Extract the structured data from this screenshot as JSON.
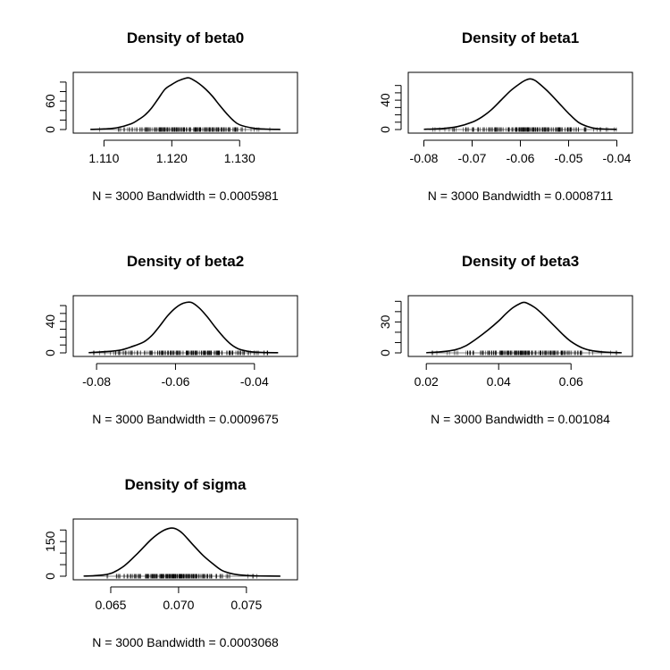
{
  "chart_data": [
    {
      "type": "line",
      "title": "Density of beta0",
      "xlabel": "N = 3000   Bandwidth = 0.0005981",
      "xlim": [
        1.106,
        1.138
      ],
      "ylim": [
        0,
        113
      ],
      "xticks": [
        1.11,
        1.12,
        1.13
      ],
      "xtick_labels": [
        "1.110",
        "1.120",
        "1.130"
      ],
      "yticks": [
        0,
        20,
        40,
        60,
        80,
        100
      ],
      "ytick_labels": [
        "0",
        "",
        "",
        "60",
        "",
        ""
      ],
      "x": [
        1.108,
        1.11,
        1.112,
        1.114,
        1.115,
        1.116,
        1.117,
        1.118,
        1.119,
        1.12,
        1.121,
        1.122,
        1.1225,
        1.123,
        1.124,
        1.125,
        1.126,
        1.127,
        1.128,
        1.129,
        1.13,
        1.132,
        1.134,
        1.136
      ],
      "y": [
        0.3,
        1.2,
        4,
        12,
        20,
        30,
        45,
        65,
        85,
        95,
        103,
        108,
        109,
        106,
        97,
        85,
        70,
        52,
        35,
        20,
        10,
        3,
        0.8,
        0.2
      ],
      "rug": {
        "min": 1.109,
        "max": 1.136,
        "center": 1.1222,
        "spread": 0.0035
      }
    },
    {
      "type": "line",
      "title": "Density of beta1",
      "xlabel": "N = 3000   Bandwidth = 0.0008711",
      "xlim": [
        -0.0825,
        -0.0375
      ],
      "ylim": [
        0,
        73
      ],
      "xticks": [
        -0.08,
        -0.07,
        -0.06,
        -0.05,
        -0.04
      ],
      "xtick_labels": [
        "-0.08",
        "-0.07",
        "-0.06",
        "-0.05",
        "-0.04"
      ],
      "yticks": [
        0,
        10,
        20,
        30,
        40,
        50,
        60
      ],
      "ytick_labels": [
        "0",
        "",
        "",
        "",
        "40",
        "",
        ""
      ],
      "x": [
        -0.08,
        -0.076,
        -0.073,
        -0.07,
        -0.068,
        -0.066,
        -0.064,
        -0.062,
        -0.06,
        -0.059,
        -0.058,
        -0.057,
        -0.056,
        -0.054,
        -0.052,
        -0.05,
        -0.048,
        -0.046,
        -0.044,
        -0.04
      ],
      "y": [
        0.3,
        1.5,
        4,
        10,
        17,
        27,
        40,
        53,
        63,
        67,
        69,
        67,
        62,
        50,
        36,
        22,
        10,
        4,
        1.2,
        0.2
      ],
      "rug": {
        "min": -0.079,
        "max": -0.04,
        "center": -0.058,
        "spread": 0.0055
      }
    },
    {
      "type": "line",
      "title": "Density of beta2",
      "xlabel": "N = 3000   Bandwidth = 0.0009675",
      "xlim": [
        -0.085,
        -0.03
      ],
      "ylim": [
        0,
        68
      ],
      "xticks": [
        -0.08,
        -0.06,
        -0.04
      ],
      "xtick_labels": [
        "-0.08",
        "-0.06",
        "-0.04"
      ],
      "yticks": [
        0,
        10,
        20,
        30,
        40,
        50,
        60
      ],
      "ytick_labels": [
        "0",
        "",
        "",
        "",
        "40",
        "",
        ""
      ],
      "x": [
        -0.082,
        -0.078,
        -0.074,
        -0.071,
        -0.068,
        -0.066,
        -0.064,
        -0.062,
        -0.06,
        -0.058,
        -0.056,
        -0.054,
        -0.052,
        -0.05,
        -0.048,
        -0.046,
        -0.044,
        -0.041,
        -0.038,
        -0.034
      ],
      "y": [
        0.3,
        1.5,
        3.5,
        8,
        14,
        22,
        34,
        47,
        57,
        63,
        64,
        57,
        46,
        33,
        21,
        11,
        5,
        1.5,
        0.5,
        0.2
      ],
      "rug": {
        "min": -0.081,
        "max": -0.036,
        "center": -0.057,
        "spread": 0.0062
      }
    },
    {
      "type": "line",
      "title": "Density of beta3",
      "xlabel": "N = 3000   Bandwidth = 0.001084",
      "xlim": [
        0.016,
        0.076
      ],
      "ylim": [
        0,
        52
      ],
      "xticks": [
        0.02,
        0.04,
        0.06
      ],
      "xtick_labels": [
        "0.02",
        "0.04",
        "0.06"
      ],
      "yticks": [
        0,
        10,
        20,
        30,
        40,
        50
      ],
      "ytick_labels": [
        "0",
        "",
        "",
        "30",
        "",
        ""
      ],
      "x": [
        0.02,
        0.024,
        0.028,
        0.031,
        0.034,
        0.037,
        0.04,
        0.042,
        0.044,
        0.046,
        0.047,
        0.048,
        0.05,
        0.052,
        0.054,
        0.056,
        0.058,
        0.06,
        0.063,
        0.066,
        0.07,
        0.074
      ],
      "y": [
        0.2,
        1,
        3,
        7,
        14,
        22,
        31,
        38,
        44,
        48,
        49,
        48,
        44,
        38,
        31,
        24,
        17,
        11,
        5,
        2,
        0.6,
        0.1
      ],
      "rug": {
        "min": 0.021,
        "max": 0.073,
        "center": 0.047,
        "spread": 0.0072
      }
    },
    {
      "type": "line",
      "title": "Density of sigma",
      "xlabel": "N = 3000   Bandwidth = 0.0003068",
      "xlim": [
        0.0625,
        0.0785
      ],
      "ylim": [
        0,
        232
      ],
      "xticks": [
        0.065,
        0.07,
        0.075
      ],
      "xtick_labels": [
        "0.065",
        "0.070",
        "0.075"
      ],
      "yticks": [
        0,
        50,
        100,
        150,
        200
      ],
      "ytick_labels": [
        "0",
        "",
        "",
        "150",
        ""
      ],
      "x": [
        0.063,
        0.064,
        0.065,
        0.066,
        0.067,
        0.068,
        0.0688,
        0.0694,
        0.0698,
        0.0703,
        0.071,
        0.0718,
        0.0725,
        0.0732,
        0.074,
        0.075,
        0.076,
        0.0775
      ],
      "y": [
        0.5,
        3,
        12,
        45,
        100,
        160,
        195,
        208,
        205,
        185,
        140,
        90,
        55,
        25,
        10,
        3,
        1,
        0.2
      ],
      "rug": {
        "min": 0.0635,
        "max": 0.0775,
        "center": 0.0695,
        "spread": 0.0016
      }
    }
  ]
}
